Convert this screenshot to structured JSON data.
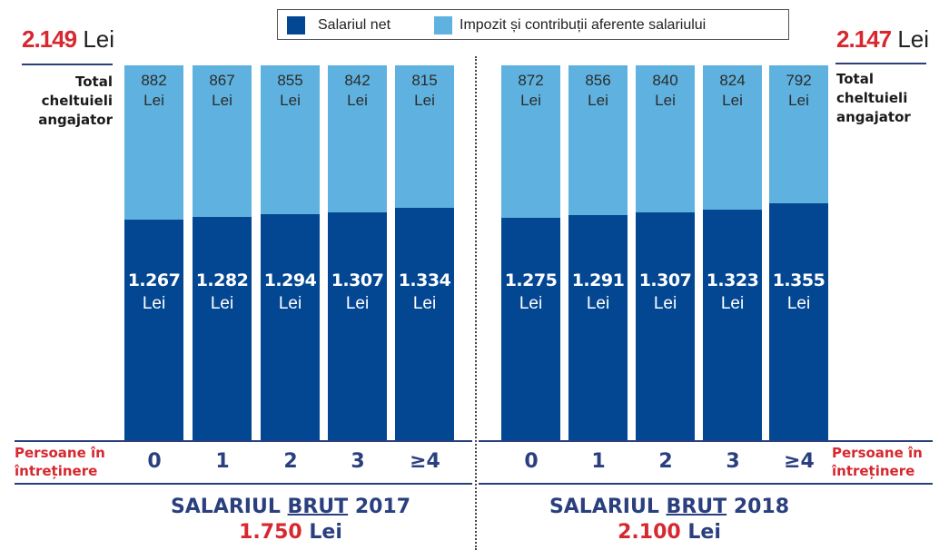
{
  "legend": {
    "net_label": "Salariul net",
    "tax_label": "Impozit și contribuții aferente salariului",
    "net_color": "#034792",
    "tax_color": "#5fb2df"
  },
  "left": {
    "total_value": "2.149",
    "total_unit": "Lei",
    "side_label": [
      "Total",
      "cheltuieli",
      "angajator"
    ],
    "persons_label": [
      "Persoane în",
      "întreținere"
    ],
    "title_pre": "SALARIUL",
    "title_u": "BRUT",
    "title_year": "2017",
    "gross_value": "1.750",
    "gross_unit": "Lei"
  },
  "right": {
    "total_value": "2.147",
    "total_unit": "Lei",
    "side_label": [
      "Total",
      "cheltuieli",
      "angajator"
    ],
    "persons_label": [
      "Persoane în",
      "întreținere"
    ],
    "title_pre": "SALARIUL",
    "title_u": "BRUT",
    "title_year": "2018",
    "gross_value": "2.100",
    "gross_unit": "Lei"
  },
  "chart_data": [
    {
      "type": "bar",
      "stacked": true,
      "title": "SALARIUL BRUT 2017 1.750 Lei",
      "xlabel": "Persoane în întreținere",
      "ylabel": "Total cheltuieli angajator",
      "total": 2149,
      "categories": [
        "0",
        "1",
        "2",
        "3",
        "≥4"
      ],
      "unit": "Lei",
      "series": [
        {
          "name": "Salariul net",
          "values": [
            1267,
            1282,
            1294,
            1307,
            1334
          ],
          "labels": [
            "1.267",
            "1.282",
            "1.294",
            "1.307",
            "1.334"
          ]
        },
        {
          "name": "Impozit și contribuții aferente salariului",
          "values": [
            882,
            867,
            855,
            842,
            815
          ],
          "labels": [
            "882",
            "867",
            "855",
            "842",
            "815"
          ]
        }
      ]
    },
    {
      "type": "bar",
      "stacked": true,
      "title": "SALARIUL BRUT 2018 2.100 Lei",
      "xlabel": "Persoane în întreținere",
      "ylabel": "Total cheltuieli angajator",
      "total": 2147,
      "categories": [
        "0",
        "1",
        "2",
        "3",
        "≥4"
      ],
      "unit": "Lei",
      "series": [
        {
          "name": "Salariul net",
          "values": [
            1275,
            1291,
            1307,
            1323,
            1355
          ],
          "labels": [
            "1.275",
            "1.291",
            "1.307",
            "1.323",
            "1.355"
          ]
        },
        {
          "name": "Impozit și contribuții aferente salariului",
          "values": [
            872,
            856,
            840,
            824,
            792
          ],
          "labels": [
            "872",
            "856",
            "840",
            "824",
            "792"
          ]
        }
      ]
    }
  ]
}
